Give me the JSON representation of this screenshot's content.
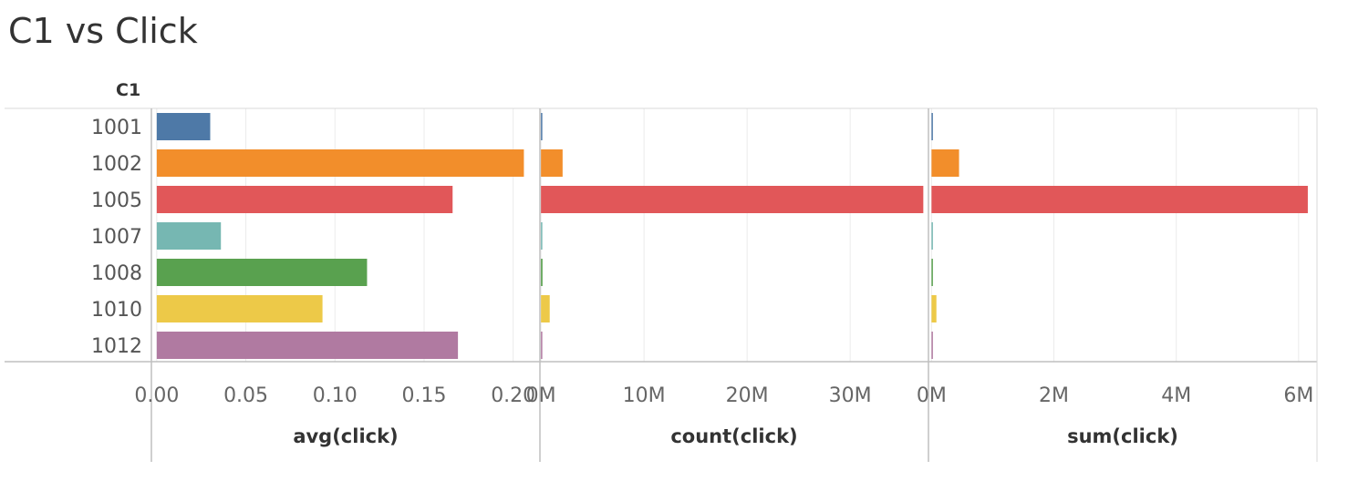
{
  "title": "C1 vs Click",
  "chart_data": {
    "type": "bar",
    "orientation": "horizontal",
    "row_header": "C1",
    "categories": [
      "1001",
      "1002",
      "1005",
      "1007",
      "1008",
      "1010",
      "1012"
    ],
    "colors": [
      "#4e79a7",
      "#f28e2b",
      "#e15759",
      "#76b7b2",
      "#59a14f",
      "#edc948",
      "#b07aa1"
    ],
    "grid": true,
    "panels": [
      {
        "name": "avg(click)",
        "xlabel": "avg(click)",
        "xlim": [
          -0.003,
          0.215
        ],
        "ticks": [
          0.0,
          0.05,
          0.1,
          0.15,
          0.2
        ],
        "tick_labels": [
          "0.00",
          "0.05",
          "0.10",
          "0.15",
          "0.20"
        ],
        "values": [
          0.03,
          0.206,
          0.166,
          0.036,
          0.118,
          0.093,
          0.169
        ]
      },
      {
        "name": "count(click)",
        "xlabel": "count(click)",
        "xlim": [
          -0.1,
          37.6
        ],
        "unit": "M",
        "ticks": [
          0,
          10,
          20,
          30
        ],
        "tick_labels": [
          "0M",
          "10M",
          "20M",
          "30M"
        ],
        "values": [
          0.03,
          2.1,
          37.1,
          0.05,
          0.15,
          0.85,
          0.1
        ]
      },
      {
        "name": "sum(click)",
        "xlabel": "sum(click)",
        "xlim": [
          -0.05,
          6.3
        ],
        "unit": "M",
        "ticks": [
          0,
          2,
          4,
          6
        ],
        "tick_labels": [
          "0M",
          "2M",
          "4M",
          "6M"
        ],
        "values": [
          0.01,
          0.45,
          6.15,
          0.01,
          0.02,
          0.08,
          0.02
        ]
      }
    ]
  }
}
